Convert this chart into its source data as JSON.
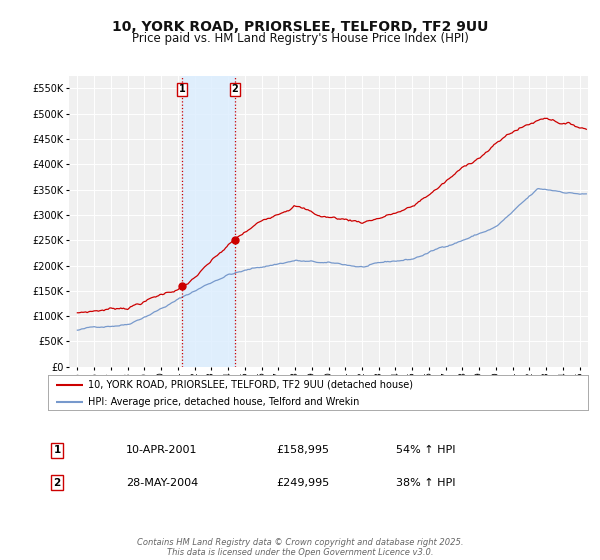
{
  "title": "10, YORK ROAD, PRIORSLEE, TELFORD, TF2 9UU",
  "subtitle": "Price paid vs. HM Land Registry's House Price Index (HPI)",
  "bg_color": "#ffffff",
  "plot_bg_color": "#f0f0f0",
  "grid_color": "#ffffff",
  "red_line_color": "#cc0000",
  "blue_line_color": "#7799cc",
  "shade_color": "#ddeeff",
  "vline_color": "#cc0000",
  "ylim": [
    0,
    575000
  ],
  "yticks": [
    0,
    50000,
    100000,
    150000,
    200000,
    250000,
    300000,
    350000,
    400000,
    450000,
    500000,
    550000
  ],
  "ytick_labels": [
    "£0",
    "£50K",
    "£100K",
    "£150K",
    "£200K",
    "£250K",
    "£300K",
    "£350K",
    "£400K",
    "£450K",
    "£500K",
    "£550K"
  ],
  "sale1_date_num": 2001.27,
  "sale1_price": 158995,
  "sale1_label": "1",
  "sale1_date_str": "10-APR-2001",
  "sale1_price_str": "£158,995",
  "sale1_hpi_str": "54% ↑ HPI",
  "sale2_date_num": 2004.41,
  "sale2_price": 249995,
  "sale2_label": "2",
  "sale2_date_str": "28-MAY-2004",
  "sale2_price_str": "£249,995",
  "sale2_hpi_str": "38% ↑ HPI",
  "legend_label_red": "10, YORK ROAD, PRIORSLEE, TELFORD, TF2 9UU (detached house)",
  "legend_label_blue": "HPI: Average price, detached house, Telford and Wrekin",
  "footer_text": "Contains HM Land Registry data © Crown copyright and database right 2025.\nThis data is licensed under the Open Government Licence v3.0.",
  "xlim_start": 1994.5,
  "xlim_end": 2025.5
}
